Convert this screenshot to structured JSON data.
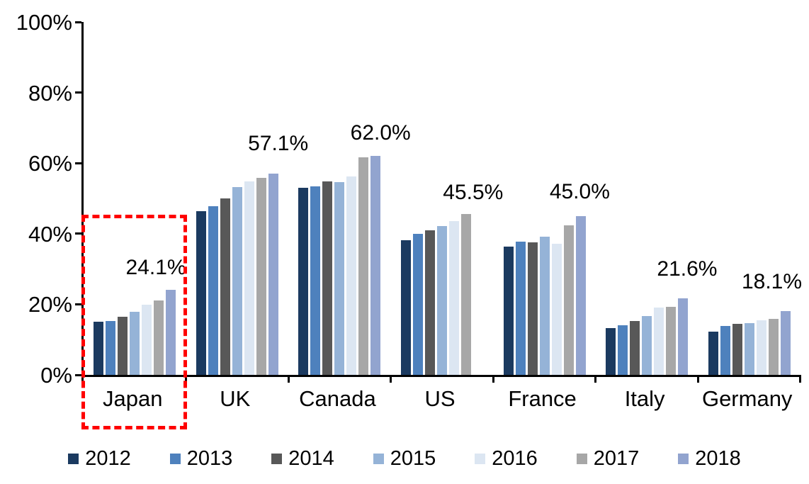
{
  "chart_data": {
    "type": "bar",
    "title": "",
    "xlabel": "",
    "ylabel": "",
    "categories": [
      "Japan",
      "UK",
      "Canada",
      "US",
      "France",
      "Italy",
      "Germany"
    ],
    "series": [
      {
        "name": "2012",
        "color": "#1b3a60",
        "values": [
          15.0,
          46.4,
          53.0,
          38.2,
          36.4,
          13.2,
          12.3
        ]
      },
      {
        "name": "2013",
        "color": "#4e81bd",
        "values": [
          15.2,
          47.8,
          53.4,
          40.0,
          37.7,
          14.1,
          13.9
        ]
      },
      {
        "name": "2014",
        "color": "#585858",
        "values": [
          16.4,
          50.0,
          54.9,
          40.9,
          37.5,
          15.3,
          14.4
        ]
      },
      {
        "name": "2015",
        "color": "#95b3d7",
        "values": [
          17.9,
          53.2,
          54.7,
          42.1,
          39.1,
          16.7,
          14.7
        ]
      },
      {
        "name": "2016",
        "color": "#dce6f2",
        "values": [
          19.8,
          54.8,
          56.3,
          43.5,
          37.2,
          19.0,
          15.4
        ]
      },
      {
        "name": "2017",
        "color": "#a7a7a7",
        "values": [
          21.0,
          55.8,
          61.6,
          45.5,
          42.3,
          19.2,
          15.9
        ]
      },
      {
        "name": "2018",
        "color": "#92a4cf",
        "values": [
          24.1,
          57.1,
          62.0,
          null,
          45.0,
          21.6,
          18.1
        ]
      }
    ],
    "value_labels": [
      "24.1%",
      "57.1%",
      "62.0%",
      "45.5%",
      "45.0%",
      "21.6%",
      "18.1%"
    ],
    "y_ticks": [
      "100%",
      "80%",
      "60%",
      "40%",
      "20%",
      "0%"
    ],
    "ylim": [
      0,
      100
    ],
    "grid": false,
    "legend_position": "bottom",
    "highlight": {
      "category": "Japan",
      "style": "red-dashed-rectangle",
      "color": "#ff0000"
    }
  }
}
